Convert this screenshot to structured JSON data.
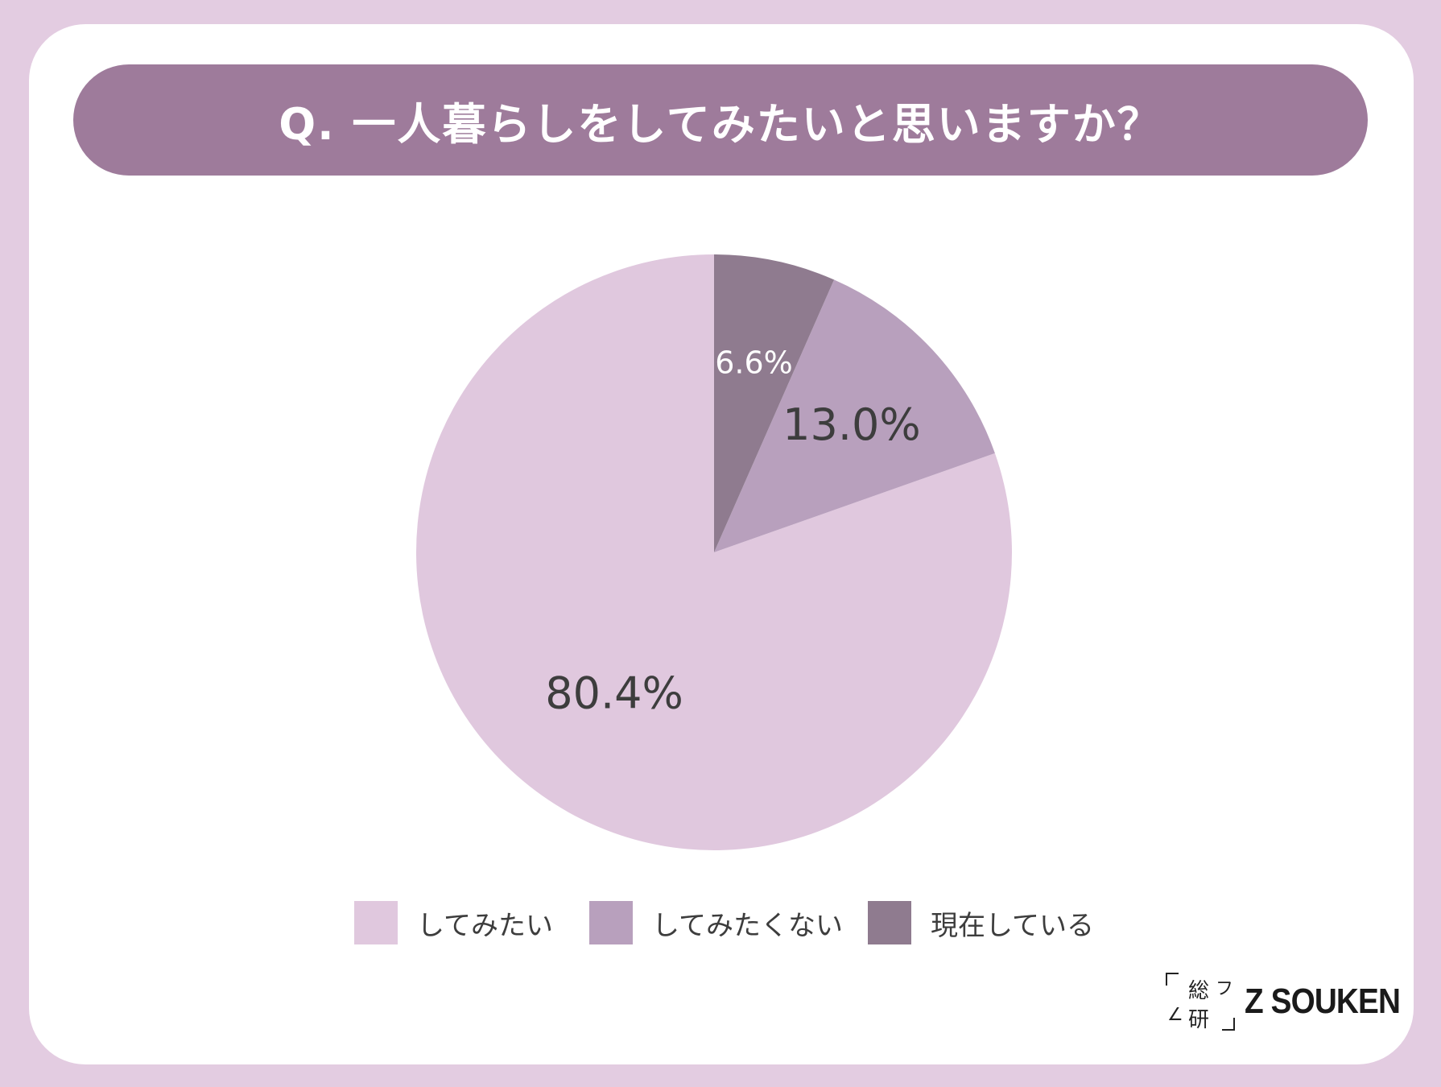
{
  "title": "Q. 一人暮らしをしてみたいと思いますか？",
  "chart_data": {
    "type": "pie",
    "start_angle_deg": 0,
    "direction": "counterclockwise",
    "slices": [
      {
        "label": "してみたい",
        "value": 80.4,
        "display": "80.4%",
        "color": "#e0c8de",
        "label_color": "#3d3d3d"
      },
      {
        "label": "してみたくない",
        "value": 13.0,
        "display": "13.0%",
        "color": "#b8a0bd",
        "label_color": "#3d3d3d"
      },
      {
        "label": "現在している",
        "value": 6.6,
        "display": "6.6%",
        "color": "#8f7b8f",
        "label_color": "#ffffff"
      }
    ],
    "legend_position": "bottom"
  },
  "legend": {
    "items": [
      {
        "label": "してみたい",
        "color": "#e0c8de"
      },
      {
        "label": "してみたくない",
        "color": "#b8a0bd"
      },
      {
        "label": "現在している",
        "color": "#8f7b8f"
      }
    ]
  },
  "logo": {
    "kanji_top": "総",
    "kanji_bottom": "研",
    "text": "Z SOUKEN"
  },
  "colors": {
    "background": "#e3cce1",
    "banner": "#9e7b9b",
    "card": "#ffffff"
  }
}
